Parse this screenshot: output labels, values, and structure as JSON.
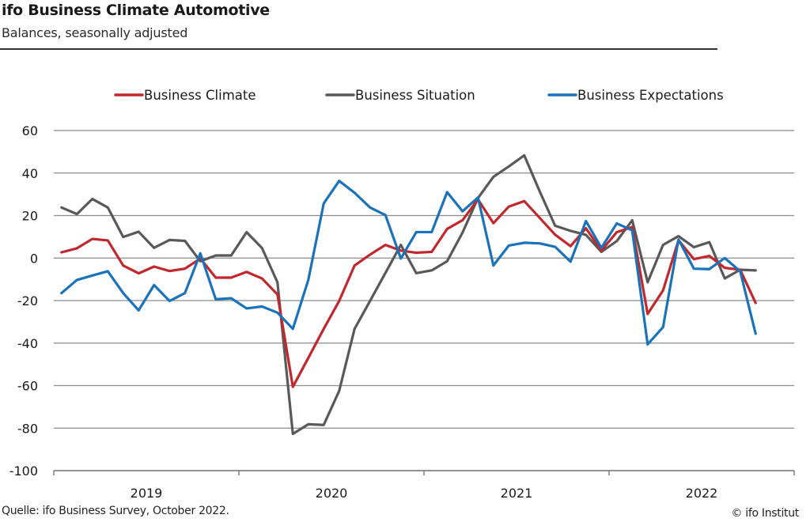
{
  "header": {
    "title": "ifo Business Climate Automotive",
    "subtitle": "Balances, seasonally adjusted"
  },
  "footer": {
    "source": "Quelle: ifo Business Survey, October 2022.",
    "copyright": "© ifo Institut"
  },
  "chart_data": {
    "type": "line",
    "title": "ifo Business Climate Automotive",
    "subtitle": "Balances, seasonally adjusted",
    "xlabel": "",
    "ylabel": "",
    "x_start": "2019-01",
    "x_end": "2022-10",
    "x_frequency": "monthly",
    "x_tick_labels": [
      "2019",
      "2020",
      "2021",
      "2022"
    ],
    "y_ticks": [
      60,
      40,
      20,
      0,
      -20,
      -40,
      -60,
      -80,
      -100
    ],
    "ylim": [
      -100,
      60
    ],
    "grid": "horizontal",
    "legend_position": "top",
    "series": [
      {
        "name": "Business Climate",
        "color": "#c0282d",
        "values": [
          2.7,
          4.6,
          9.0,
          8.3,
          -3.5,
          -7.2,
          -4.0,
          -6.1,
          -5.0,
          -0.2,
          -9.2,
          -9.2,
          -6.5,
          -9.6,
          -17.1,
          -60.6,
          -47.0,
          -33.3,
          -20.2,
          -3.5,
          1.6,
          6.2,
          3.5,
          2.5,
          2.9,
          13.7,
          17.8,
          27.6,
          16.4,
          24.2,
          26.8,
          18.9,
          11.0,
          5.6,
          14.0,
          3.5,
          12.2,
          14.6,
          -26.3,
          -15.2,
          8.4,
          -0.5,
          1.0,
          -4.6,
          -5.5,
          -21.1
        ]
      },
      {
        "name": "Business Situation",
        "color": "#595959",
        "values": [
          23.8,
          20.7,
          27.8,
          23.8,
          9.9,
          12.4,
          4.8,
          8.5,
          8.1,
          -1.5,
          1.2,
          1.2,
          12.2,
          4.7,
          -11.4,
          -82.7,
          -78.2,
          -78.5,
          -62.5,
          -33.3,
          -20.2,
          -7.0,
          6.2,
          -7.1,
          -5.8,
          -1.5,
          12.0,
          28.2,
          38.2,
          43.1,
          48.3,
          31.4,
          15.2,
          12.8,
          10.9,
          2.9,
          8.0,
          17.8,
          -11.4,
          6.2,
          10.3,
          5.1,
          7.5,
          -9.6,
          -5.5,
          -5.8
        ]
      },
      {
        "name": "Business Expectations",
        "color": "#1a73b8",
        "values": [
          -16.5,
          -10.3,
          -8.2,
          -6.2,
          -16.5,
          -24.6,
          -12.7,
          -20.2,
          -16.5,
          2.2,
          -19.4,
          -18.9,
          -23.7,
          -22.8,
          -25.7,
          -33.3,
          -10.3,
          25.7,
          36.3,
          30.7,
          23.8,
          20.2,
          -0.2,
          12.2,
          12.2,
          31.0,
          22.0,
          28.5,
          -3.5,
          5.9,
          7.2,
          6.9,
          5.3,
          -1.7,
          17.4,
          4.8,
          16.3,
          13.0,
          -40.6,
          -32.5,
          8.7,
          -5.0,
          -5.2,
          0.0,
          -6.2,
          -35.6
        ]
      }
    ]
  }
}
